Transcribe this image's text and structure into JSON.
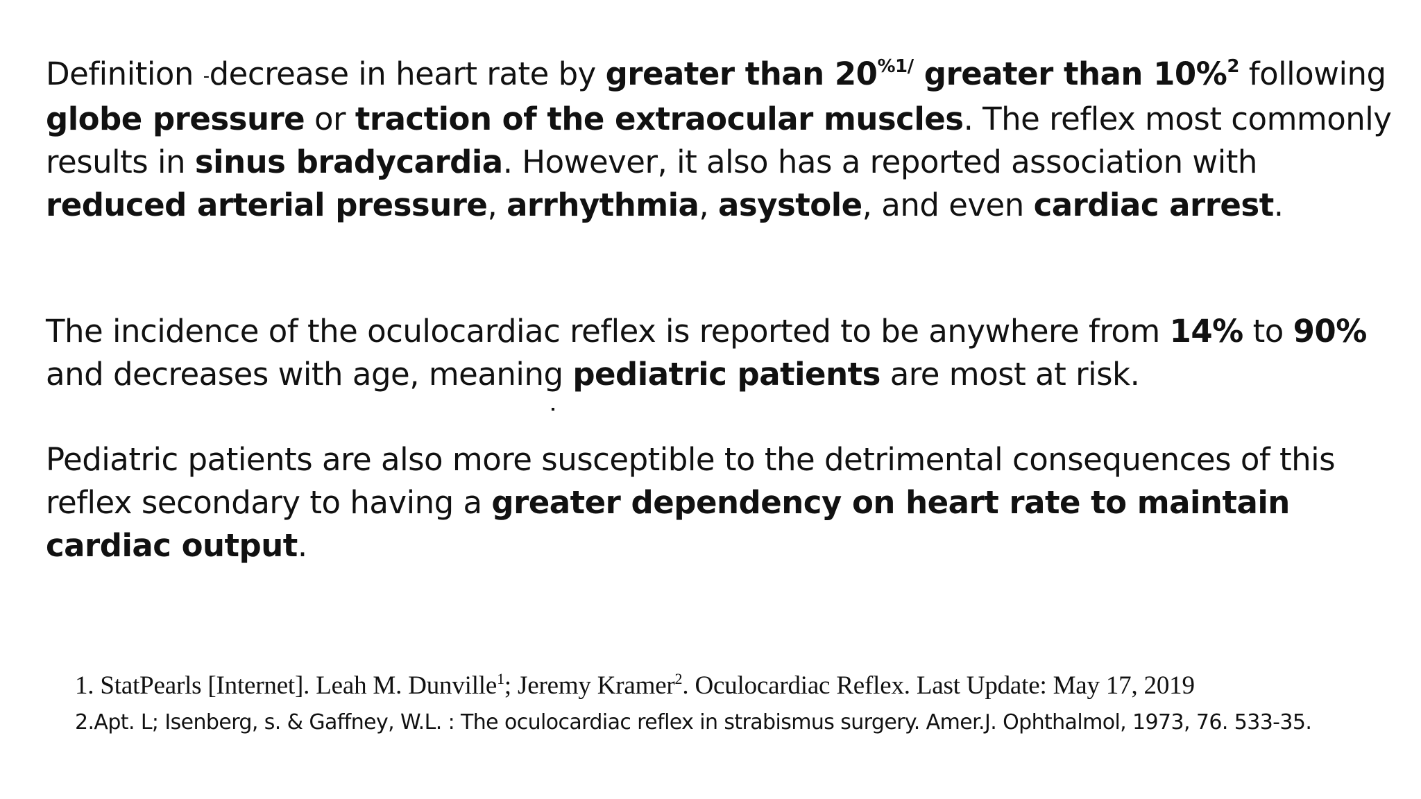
{
  "p1": {
    "s01": "Definition ",
    "s02": "-",
    "s03": "decrease in heart rate by ",
    "s04": "greater than 20",
    "s05": "%1/",
    "s06": " greater than 10%",
    "s07": "2",
    "s08": " following ",
    "s09": "globe pressure",
    "s10": " or ",
    "s11": "traction of the extraocular muscles",
    "s12": ". The reflex most commonly results in ",
    "s13": "sinus bradycardia",
    "s14": ". However, it also has a reported association with ",
    "s15": "reduced arterial pressure",
    "s16": ", ",
    "s17": "arrhythmia",
    "s18": ", ",
    "s19": "asystole",
    "s20": ", and even ",
    "s21": "cardiac arrest",
    "s22": "."
  },
  "p2": {
    "s01": "The incidence of the oculocardiac reflex is reported to be anywhere from ",
    "s02": "14%",
    "s03": " to ",
    "s04": "90%",
    "s05": " and decreases with age, meaning ",
    "s06": "pediatric patients",
    "s07": " are most at risk."
  },
  "p3": {
    "s01": "Pediatric patients are also more susceptible to the detrimental consequences of this reflex secondary to having a ",
    "s02": "greater dependency on heart rate to maintain cardiac output",
    "s03": "."
  },
  "refs": {
    "r1a": "1. StatPearls [Internet]. Leah M. Dunville",
    "r1b": "1",
    "r1c": "; Jeremy Kramer",
    "r1d": "2",
    "r1e": ". Oculocardiac Reflex. Last Update: May 17, 2019",
    "r2": "2.Apt. L; Isenberg, s. & Gaffney, W.L. : The oculocardiac reflex in strabismus surgery. Amer.J. Ophthalmol, 1973, 76. 533-35."
  }
}
